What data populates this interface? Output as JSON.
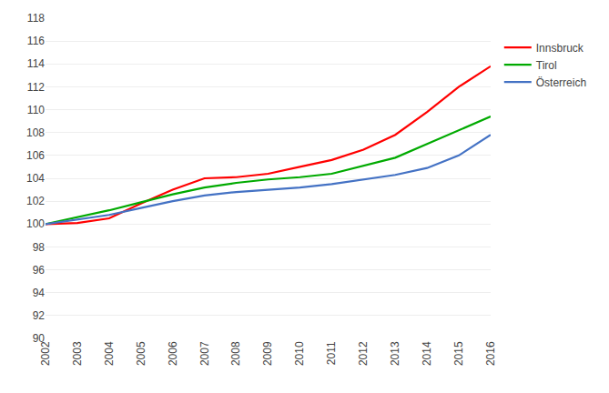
{
  "chart_data": {
    "type": "line",
    "x": [
      2002,
      2003,
      2004,
      2005,
      2006,
      2007,
      2008,
      2009,
      2010,
      2011,
      2012,
      2013,
      2014,
      2015,
      2016
    ],
    "series": [
      {
        "name": "Innsbruck",
        "color": "#ff0000",
        "values": [
          100.0,
          100.1,
          100.5,
          101.8,
          103.0,
          104.0,
          104.1,
          104.4,
          105.0,
          105.6,
          106.5,
          107.8,
          109.8,
          112.0,
          113.8
        ]
      },
      {
        "name": "Tirol",
        "color": "#00aa00",
        "values": [
          100.0,
          100.6,
          101.2,
          101.9,
          102.6,
          103.2,
          103.6,
          103.9,
          104.1,
          104.4,
          105.1,
          105.8,
          107.0,
          108.2,
          109.4
        ]
      },
      {
        "name": "Österreich",
        "color": "#4472c4",
        "values": [
          100.0,
          100.4,
          100.8,
          101.4,
          102.0,
          102.5,
          102.8,
          103.0,
          103.2,
          103.5,
          103.9,
          104.3,
          104.9,
          106.0,
          107.8
        ]
      }
    ],
    "xlim": [
      2002,
      2016
    ],
    "xticks": [
      2002,
      2003,
      2004,
      2005,
      2006,
      2007,
      2008,
      2009,
      2010,
      2011,
      2012,
      2013,
      2014,
      2015,
      2016
    ],
    "ylim": [
      90,
      118
    ],
    "yticks": [
      90,
      92,
      94,
      96,
      98,
      100,
      102,
      104,
      106,
      108,
      110,
      112,
      114,
      116,
      118
    ],
    "grid": "y",
    "legend": "right"
  }
}
